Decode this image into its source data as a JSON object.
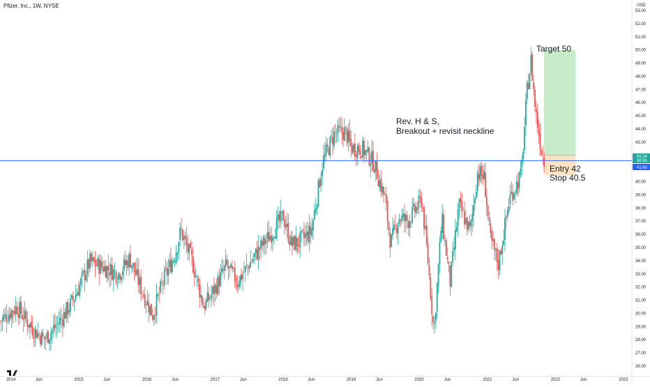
{
  "header": {
    "title": "Pfizer, Inc., 1W, NYSE"
  },
  "chart_data": {
    "type": "candlestick",
    "title": "Pfizer, Inc., 1W, NYSE",
    "currency": "USD",
    "yticks": [
      "53.00",
      "52.00",
      "51.00",
      "50.00",
      "49.00",
      "48.00",
      "47.00",
      "46.00",
      "45.00",
      "44.00",
      "43.00",
      "42.00",
      "41.00",
      "40.00",
      "39.00",
      "38.00",
      "37.00",
      "36.00",
      "35.00",
      "34.00",
      "33.00",
      "32.00",
      "31.00",
      "30.00",
      "29.00",
      "28.00",
      "27.00",
      "26.00"
    ],
    "xticks": [
      "2014",
      "Jun",
      "2015",
      "Jun",
      "2016",
      "Jun",
      "2017",
      "Jun",
      "2018",
      "Jun",
      "2019",
      "Jun",
      "2020",
      "Jun",
      "2021",
      "Jun",
      "2022",
      "Jun",
      "2023"
    ],
    "ylim": [
      25.7,
      53.6
    ],
    "path": [
      [
        "2013-11-04",
        29.4
      ],
      [
        "2014-02-01",
        30.5
      ],
      [
        "2014-05-01",
        28.8
      ],
      [
        "2014-07-01",
        28.0
      ],
      [
        "2014-10-01",
        29.6
      ],
      [
        "2014-12-01",
        31.0
      ],
      [
        "2015-03-01",
        33.9
      ],
      [
        "2015-06-01",
        33.4
      ],
      [
        "2015-08-01",
        33.0
      ],
      [
        "2015-10-01",
        34.2
      ],
      [
        "2015-12-01",
        31.9
      ],
      [
        "2016-02-01",
        29.9
      ],
      [
        "2016-04-01",
        32.6
      ],
      [
        "2016-06-01",
        34.5
      ],
      [
        "2016-07-01",
        36.3
      ],
      [
        "2016-09-01",
        33.9
      ],
      [
        "2016-11-01",
        30.5
      ],
      [
        "2017-01-01",
        31.9
      ],
      [
        "2017-03-01",
        33.6
      ],
      [
        "2017-05-01",
        32.4
      ],
      [
        "2017-07-01",
        33.7
      ],
      [
        "2017-09-01",
        35.0
      ],
      [
        "2017-11-01",
        36.1
      ],
      [
        "2018-01-01",
        37.4
      ],
      [
        "2018-02-15",
        35.2
      ],
      [
        "2018-04-01",
        35.5
      ],
      [
        "2018-06-01",
        36.2
      ],
      [
        "2018-08-01",
        41.5
      ],
      [
        "2018-10-01",
        43.6
      ],
      [
        "2018-12-01",
        43.8
      ],
      [
        "2019-01-01",
        42.6
      ],
      [
        "2019-03-01",
        42.5
      ],
      [
        "2019-05-01",
        41.5
      ],
      [
        "2019-07-01",
        38.7
      ],
      [
        "2019-08-01",
        35.3
      ],
      [
        "2019-09-15",
        37.3
      ],
      [
        "2019-11-01",
        37.0
      ],
      [
        "2020-01-15",
        38.6
      ],
      [
        "2020-02-15",
        34.3
      ],
      [
        "2020-03-20",
        28.6
      ],
      [
        "2020-05-01",
        37.2
      ],
      [
        "2020-06-15",
        32.4
      ],
      [
        "2020-08-01",
        38.2
      ],
      [
        "2020-10-01",
        36.2
      ],
      [
        "2020-11-09",
        40.7
      ],
      [
        "2020-12-15",
        40.3
      ],
      [
        "2021-01-15",
        35.7
      ],
      [
        "2021-03-01",
        33.8
      ],
      [
        "2021-05-01",
        38.8
      ],
      [
        "2021-07-01",
        40.5
      ],
      [
        "2021-08-01",
        46.8
      ],
      [
        "2021-08-23",
        49.2
      ],
      [
        "2021-09-15",
        45.5
      ],
      [
        "2021-10-15",
        42.6
      ],
      [
        "2021-11-01",
        41.6
      ]
    ],
    "last_price": 41.6,
    "price_tags": [
      "42.14",
      "3d 5h",
      "41.60"
    ],
    "annotations": [
      {
        "line1": "Rev. H & S,",
        "line2": "Breakout + revisit neckline"
      },
      {
        "line1": "Target 50"
      },
      {
        "line1": "Entry 42",
        "line2": "Stop 40.5"
      }
    ],
    "neckline_y": 41.6,
    "trade": {
      "start": "2021-11-01",
      "end": "2022-04-20",
      "entry": 42.0,
      "target": 50.0,
      "stop": 40.5
    },
    "colors": {
      "up": "#26a69a",
      "down": "#ef5350",
      "neckline": "#2962ff",
      "target_fill": "#c8ebc9",
      "stop_fill": "#fde2c4",
      "tag_green": "#26a69a",
      "tag_blue": "#2962ff"
    }
  }
}
